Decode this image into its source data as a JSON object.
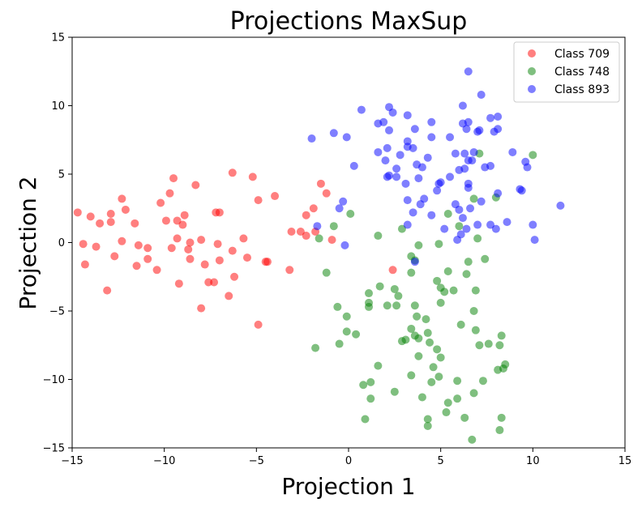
{
  "chart_data": {
    "type": "scatter",
    "title": "Projections MaxSup",
    "xlabel": "Projection 1",
    "ylabel": "Projection 2",
    "xlim": [
      -15,
      15
    ],
    "ylim": [
      -15,
      15
    ],
    "xticks": [
      -15,
      -10,
      -5,
      0,
      5,
      10,
      15
    ],
    "yticks": [
      -15,
      -10,
      -5,
      0,
      5,
      10,
      15
    ],
    "grid": false,
    "legend_position": "top-right",
    "series": [
      {
        "name": "Class 709",
        "color": "#ff0000",
        "points": [
          [
            -14.7,
            2.2
          ],
          [
            -14.0,
            1.9
          ],
          [
            -13.5,
            1.4
          ],
          [
            -12.9,
            2.1
          ],
          [
            -12.9,
            1.5
          ],
          [
            -12.3,
            3.2
          ],
          [
            -12.1,
            2.4
          ],
          [
            -11.6,
            1.4
          ],
          [
            -10.2,
            2.9
          ],
          [
            -9.7,
            3.6
          ],
          [
            -9.5,
            4.7
          ],
          [
            -9.3,
            1.6
          ],
          [
            -9.0,
            1.3
          ],
          [
            -8.9,
            2.0
          ],
          [
            -8.3,
            4.2
          ],
          [
            -7.2,
            2.2
          ],
          [
            -7.0,
            2.2
          ],
          [
            -6.3,
            5.1
          ],
          [
            -5.2,
            4.8
          ],
          [
            -4.9,
            3.1
          ],
          [
            -4.0,
            3.4
          ],
          [
            -1.5,
            4.3
          ],
          [
            -1.2,
            3.6
          ],
          [
            -2.3,
            2.0
          ],
          [
            -1.9,
            2.5
          ],
          [
            -2.3,
            0.5
          ],
          [
            -2.6,
            0.8
          ],
          [
            -3.1,
            0.8
          ],
          [
            -14.4,
            -0.1
          ],
          [
            -14.3,
            -1.6
          ],
          [
            -13.7,
            -0.3
          ],
          [
            -12.7,
            -1.0
          ],
          [
            -12.3,
            0.1
          ],
          [
            -11.4,
            -0.2
          ],
          [
            -11.5,
            -1.7
          ],
          [
            -10.9,
            -0.4
          ],
          [
            -10.4,
            -2.0
          ],
          [
            -9.6,
            -0.4
          ],
          [
            -9.9,
            1.6
          ],
          [
            -9.3,
            0.3
          ],
          [
            -8.7,
            -0.5
          ],
          [
            -8.6,
            -1.2
          ],
          [
            -8.0,
            0.2
          ],
          [
            -7.8,
            -1.6
          ],
          [
            -7.3,
            -2.9
          ],
          [
            -7.1,
            -0.1
          ],
          [
            -7.0,
            -1.3
          ],
          [
            -6.3,
            -0.6
          ],
          [
            -5.7,
            0.3
          ],
          [
            -5.5,
            -1.1
          ],
          [
            -4.4,
            -1.4
          ],
          [
            -4.5,
            -1.4
          ],
          [
            -3.2,
            -2.0
          ],
          [
            -6.2,
            -2.5
          ],
          [
            -6.5,
            -3.9
          ],
          [
            -7.6,
            -2.9
          ],
          [
            -8.0,
            -4.8
          ],
          [
            -9.2,
            -3.0
          ],
          [
            -10.9,
            -1.2
          ],
          [
            -13.1,
            -3.5
          ],
          [
            -4.9,
            -6.0
          ],
          [
            -1.8,
            0.8
          ],
          [
            -0.9,
            0.2
          ],
          [
            2.4,
            -2.0
          ],
          [
            -8.6,
            0.0
          ]
        ]
      },
      {
        "name": "Class 748",
        "color": "#008000",
        "points": [
          [
            -1.6,
            0.3
          ],
          [
            -0.8,
            1.2
          ],
          [
            0.1,
            2.1
          ],
          [
            -0.6,
            -4.7
          ],
          [
            -0.1,
            -5.4
          ],
          [
            -0.1,
            -6.5
          ],
          [
            0.4,
            -6.7
          ],
          [
            -0.5,
            -7.4
          ],
          [
            -1.8,
            -7.7
          ],
          [
            -1.2,
            -2.2
          ],
          [
            1.1,
            -3.7
          ],
          [
            1.1,
            -4.4
          ],
          [
            1.1,
            -4.7
          ],
          [
            1.7,
            -3.2
          ],
          [
            2.1,
            -4.6
          ],
          [
            2.5,
            -3.4
          ],
          [
            2.6,
            -4.6
          ],
          [
            2.7,
            -3.9
          ],
          [
            3.4,
            -1.0
          ],
          [
            3.4,
            -2.2
          ],
          [
            3.6,
            -1.3
          ],
          [
            3.6,
            -4.6
          ],
          [
            3.7,
            -5.4
          ],
          [
            3.6,
            -6.8
          ],
          [
            3.4,
            -6.3
          ],
          [
            3.8,
            -7.0
          ],
          [
            2.9,
            -7.2
          ],
          [
            3.1,
            -7.1
          ],
          [
            4.2,
            -5.6
          ],
          [
            4.3,
            -6.6
          ],
          [
            4.4,
            -7.3
          ],
          [
            3.8,
            -8.3
          ],
          [
            3.4,
            -9.7
          ],
          [
            4.0,
            -11.3
          ],
          [
            4.5,
            -10.2
          ],
          [
            4.8,
            -7.8
          ],
          [
            5.0,
            -8.4
          ],
          [
            4.9,
            -9.8
          ],
          [
            4.8,
            -2.8
          ],
          [
            5.0,
            -3.3
          ],
          [
            5.2,
            -3.6
          ],
          [
            5.0,
            -4.4
          ],
          [
            5.7,
            -3.5
          ],
          [
            5.4,
            -2.1
          ],
          [
            5.4,
            2.1
          ],
          [
            4.9,
            -0.1
          ],
          [
            3.8,
            -0.2
          ],
          [
            6.0,
            1.2
          ],
          [
            6.5,
            -1.4
          ],
          [
            6.9,
            -3.5
          ],
          [
            6.8,
            -5.0
          ],
          [
            6.1,
            -6.0
          ],
          [
            6.9,
            -6.4
          ],
          [
            7.1,
            -7.5
          ],
          [
            7.6,
            -7.4
          ],
          [
            5.9,
            -10.1
          ],
          [
            5.9,
            -11.4
          ],
          [
            6.3,
            -12.8
          ],
          [
            7.3,
            -10.1
          ],
          [
            6.8,
            -11.0
          ],
          [
            5.4,
            -11.7
          ],
          [
            5.3,
            -12.4
          ],
          [
            4.3,
            -12.9
          ],
          [
            4.3,
            -13.4
          ],
          [
            6.7,
            -14.4
          ],
          [
            8.1,
            -9.3
          ],
          [
            8.4,
            -9.2
          ],
          [
            8.5,
            -8.9
          ],
          [
            8.3,
            -6.8
          ],
          [
            8.2,
            -7.5
          ],
          [
            8.3,
            -12.8
          ],
          [
            8.2,
            -13.7
          ],
          [
            1.6,
            -9.0
          ],
          [
            1.2,
            -10.2
          ],
          [
            1.2,
            -11.4
          ],
          [
            0.9,
            -12.9
          ],
          [
            2.5,
            -10.9
          ],
          [
            1.6,
            0.5
          ],
          [
            2.9,
            1.0
          ],
          [
            6.8,
            3.2
          ],
          [
            7.1,
            6.5
          ],
          [
            8.0,
            3.3
          ],
          [
            10.0,
            6.4
          ],
          [
            7.4,
            -1.2
          ],
          [
            7.0,
            0.3
          ],
          [
            6.4,
            -2.3
          ],
          [
            4.6,
            -9.1
          ],
          [
            0.8,
            -10.4
          ]
        ]
      },
      {
        "name": "Class 893",
        "color": "#0000ff",
        "points": [
          [
            0.7,
            9.7
          ],
          [
            2.2,
            9.9
          ],
          [
            2.4,
            9.5
          ],
          [
            3.2,
            9.3
          ],
          [
            1.6,
            8.7
          ],
          [
            2.2,
            8.2
          ],
          [
            3.2,
            7.4
          ],
          [
            3.6,
            8.3
          ],
          [
            4.5,
            8.8
          ],
          [
            1.6,
            6.6
          ],
          [
            2.0,
            6.0
          ],
          [
            2.1,
            6.9
          ],
          [
            2.8,
            6.4
          ],
          [
            3.2,
            7.0
          ],
          [
            3.5,
            6.9
          ],
          [
            2.1,
            4.8
          ],
          [
            2.6,
            4.8
          ],
          [
            3.1,
            4.3
          ],
          [
            3.7,
            5.7
          ],
          [
            4.0,
            5.5
          ],
          [
            4.3,
            6.2
          ],
          [
            4.5,
            7.7
          ],
          [
            5.5,
            7.7
          ],
          [
            5.8,
            6.5
          ],
          [
            6.2,
            8.7
          ],
          [
            6.2,
            10.0
          ],
          [
            6.5,
            8.8
          ],
          [
            7.0,
            8.1
          ],
          [
            7.2,
            10.8
          ],
          [
            6.5,
            12.5
          ],
          [
            7.1,
            8.2
          ],
          [
            7.7,
            9.1
          ],
          [
            8.1,
            9.2
          ],
          [
            7.9,
            8.1
          ],
          [
            6.3,
            6.5
          ],
          [
            6.5,
            6.0
          ],
          [
            6.8,
            6.6
          ],
          [
            6.3,
            5.4
          ],
          [
            6.0,
            5.3
          ],
          [
            5.5,
            4.8
          ],
          [
            5.0,
            4.4
          ],
          [
            4.8,
            3.8
          ],
          [
            3.2,
            3.1
          ],
          [
            3.5,
            2.2
          ],
          [
            3.2,
            1.3
          ],
          [
            4.1,
            3.2
          ],
          [
            4.5,
            2.0
          ],
          [
            3.9,
            2.8
          ],
          [
            6.5,
            4.3
          ],
          [
            6.5,
            4.0
          ],
          [
            6.0,
            2.4
          ],
          [
            6.2,
            1.8
          ],
          [
            5.8,
            2.8
          ],
          [
            6.6,
            2.5
          ],
          [
            5.2,
            1.0
          ],
          [
            6.1,
            0.6
          ],
          [
            6.4,
            1.0
          ],
          [
            5.9,
            0.2
          ],
          [
            7.0,
            1.3
          ],
          [
            7.2,
            3.0
          ],
          [
            7.7,
            5.6
          ],
          [
            8.1,
            3.6
          ],
          [
            7.7,
            1.3
          ],
          [
            8.0,
            1.0
          ],
          [
            8.6,
            1.5
          ],
          [
            8.9,
            6.6
          ],
          [
            9.3,
            3.9
          ],
          [
            9.4,
            3.8
          ],
          [
            9.6,
            5.9
          ],
          [
            10.0,
            1.3
          ],
          [
            10.1,
            0.2
          ],
          [
            11.5,
            2.7
          ],
          [
            1.9,
            8.8
          ],
          [
            -0.8,
            8.0
          ],
          [
            -0.1,
            7.7
          ],
          [
            -2.0,
            7.6
          ],
          [
            -1.7,
            1.2
          ],
          [
            -0.3,
            3.0
          ],
          [
            -0.5,
            2.5
          ],
          [
            0.3,
            5.6
          ],
          [
            2.2,
            4.9
          ],
          [
            2.6,
            5.4
          ],
          [
            3.8,
            4.7
          ],
          [
            4.9,
            4.3
          ],
          [
            -0.2,
            -0.2
          ],
          [
            3.6,
            -1.4
          ],
          [
            8.1,
            8.3
          ],
          [
            6.7,
            6.0
          ],
          [
            7.4,
            5.5
          ],
          [
            9.7,
            5.5
          ],
          [
            6.4,
            8.3
          ]
        ]
      }
    ]
  }
}
